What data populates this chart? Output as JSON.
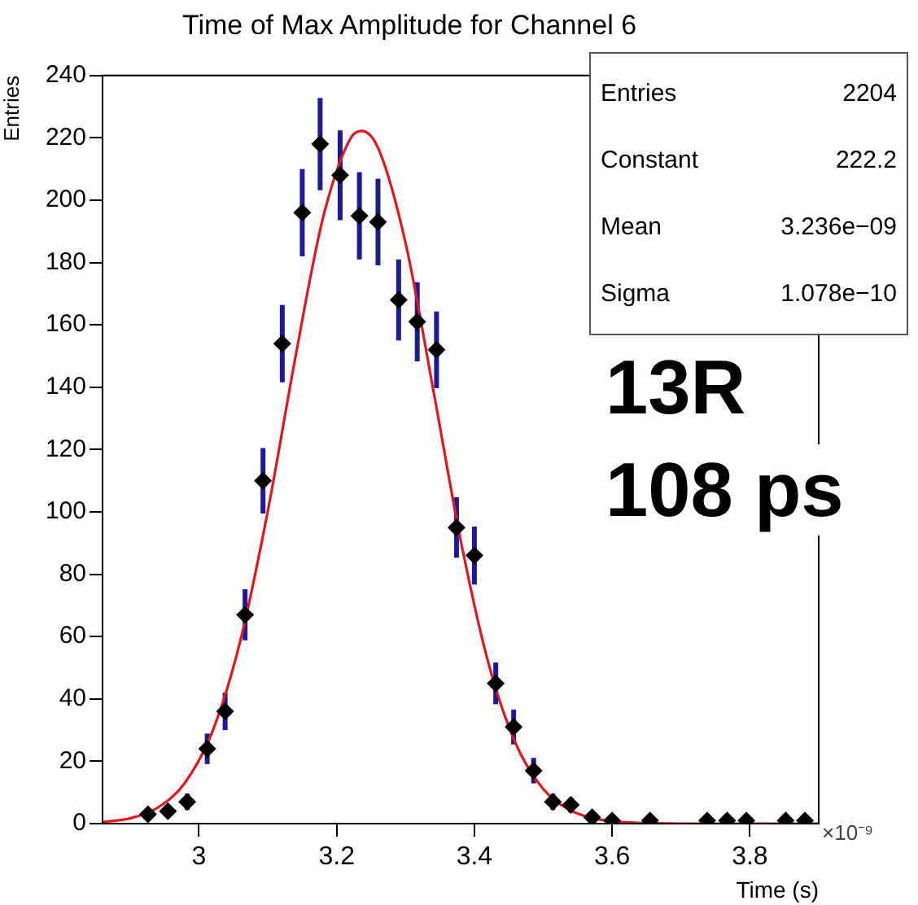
{
  "chart_data": {
    "type": "scatter",
    "title": "Time of Max Amplitude for Channel 6",
    "xlabel": "Time (s)",
    "ylabel": "Entries",
    "xlim": [
      2.86,
      3.9
    ],
    "xticks": [
      3,
      3.2,
      3.4,
      3.6,
      3.8
    ],
    "ylim": [
      0,
      240
    ],
    "yticks": [
      0,
      20,
      40,
      60,
      80,
      100,
      120,
      140,
      160,
      180,
      200,
      220,
      240
    ],
    "grid": false,
    "legend": false,
    "marker": "diamond",
    "annotations": [
      "×10⁻⁹",
      "Entries",
      "2204",
      "Constant",
      "222.2",
      "Mean",
      "3.236e−09",
      "Sigma",
      "1.078e−10",
      "13R",
      "108 ps"
    ],
    "series": [
      {
        "color": "#000000",
        "x": [
          2.926,
          2.955,
          2.983,
          3.012,
          3.038,
          3.067,
          3.093,
          3.121,
          3.15,
          3.176,
          3.205,
          3.233,
          3.26,
          3.29,
          3.317,
          3.345,
          3.374,
          3.4,
          3.431,
          3.457,
          3.486,
          3.514,
          3.54,
          3.571,
          3.6,
          3.655,
          3.738,
          3.767,
          3.795,
          3.852,
          3.88
        ],
        "values": [
          3,
          4,
          7,
          24,
          36,
          67,
          110,
          154,
          196,
          218,
          208,
          195,
          193,
          168,
          161,
          152,
          95,
          86,
          45,
          31,
          17,
          7,
          6,
          2,
          1,
          1,
          1,
          1,
          1,
          1,
          1
        ],
        "errors": [
          null,
          null,
          2.6,
          4.9,
          6,
          8.2,
          10.5,
          12.4,
          14,
          14.8,
          14.4,
          14,
          13.9,
          13,
          12.7,
          12.3,
          9.7,
          9.3,
          6.7,
          5.6,
          4.1,
          2.6,
          2.4,
          null,
          null,
          null,
          null,
          null,
          null,
          null,
          null
        ]
      },
      {
        "type": "line",
        "color": "#e8141c",
        "marker": "none",
        "x": [
          2.86,
          2.9,
          2.94,
          2.98,
          3.02,
          3.06,
          3.1,
          3.14,
          3.18,
          3.22,
          3.236,
          3.26,
          3.3,
          3.34,
          3.38,
          3.42,
          3.46,
          3.5,
          3.54,
          3.58,
          3.62,
          3.7,
          3.9
        ],
        "values": [
          0.5,
          1.7,
          5.1,
          13.2,
          29.8,
          58.6,
          100.3,
          149.5,
          194.2,
          219.8,
          222.2,
          216.8,
          186.3,
          139.5,
          91,
          51.8,
          25.7,
          11.1,
          4.2,
          1.4,
          0.4,
          0,
          0
        ]
      }
    ]
  }
}
